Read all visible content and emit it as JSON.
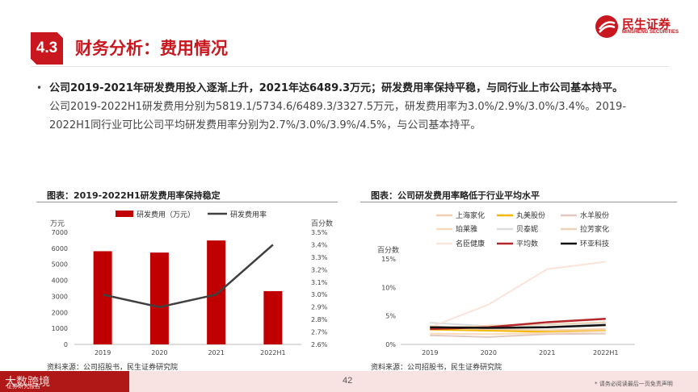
{
  "header": {
    "section_no": "4.3",
    "title": "财务分析：费用情况",
    "logo_cn": "民生证券",
    "logo_en": "MINSHENG SECURITIES"
  },
  "bullet": {
    "headline": "公司2019-2021年研发费用投入逐渐上升，2021年达6489.3万元；研发费用率保持平稳，与同行业上市公司基本持平。",
    "body_line1": "公司2019-2022H1研发费用分别为5819.1/5734.6/6489.3/3327.5万元，研发费用率为3.0%/2.9%/3.0%/3.4%。2019-",
    "body_line2": "2022H1同行业可比公司平均研发费用率分别为2.7%/3.0%/3.9%/4.5%，与公司基本持平。"
  },
  "chart_left": {
    "panel_title": "图表：2019-2022H1研发费用率保持稳定",
    "left_unit": "万元",
    "right_unit": "百分数",
    "source": "资料来源：公司招股书，民生证券研究院"
  },
  "chart_right": {
    "panel_title": "图表：公司研发费用率略低于行业平均水平",
    "y_unit": "百分数",
    "source": "资料来源：公司招股书，民生证券研究院"
  },
  "chart_data": [
    {
      "type": "bar",
      "categories": [
        "2019",
        "2020",
        "2021",
        "2022H1"
      ],
      "series": [
        {
          "name": "研发费用（万元）",
          "type": "bar",
          "axis": "left",
          "values": [
            5819.1,
            5734.6,
            6489.3,
            3327.5
          ],
          "color": "#c00000"
        },
        {
          "name": "研发费用率",
          "type": "line",
          "axis": "right",
          "values": [
            3.0,
            2.9,
            3.0,
            3.4
          ],
          "color": "#404040"
        }
      ],
      "ylim_left": [
        0,
        7000
      ],
      "yticks_left": [
        "0",
        "1000",
        "2000",
        "3000",
        "4000",
        "5000",
        "6000",
        "7000"
      ],
      "ylim_right": [
        2.6,
        3.5
      ],
      "yticks_right": [
        "2.6%",
        "2.7%",
        "2.8%",
        "2.9%",
        "3.0%",
        "3.1%",
        "3.2%",
        "3.3%",
        "3.4%",
        "3.5%"
      ],
      "legend": "top",
      "grid": false
    },
    {
      "type": "line",
      "categories": [
        "2019",
        "2020",
        "2021",
        "2022H1"
      ],
      "series": [
        {
          "name": "上海家化",
          "values": [
            3.2,
            2.6,
            2.5,
            2.7
          ],
          "color": "#f2cfb1"
        },
        {
          "name": "丸美股份",
          "values": [
            2.6,
            2.4,
            2.2,
            2.4
          ],
          "color": "#f5b800"
        },
        {
          "name": "水羊股份",
          "values": [
            1.6,
            1.3,
            1.8,
            1.9
          ],
          "color": "#e0c9c2"
        },
        {
          "name": "珀莱雅",
          "values": [
            1.9,
            1.8,
            2.0,
            2.3
          ],
          "color": "#f7dbbb"
        },
        {
          "name": "贝泰妮",
          "values": [
            3.8,
            3.2,
            3.1,
            3.7
          ],
          "color": "#dcdcdc"
        },
        {
          "name": "拉芳家化",
          "values": [
            2.8,
            3.3,
            3.5,
            3.9
          ],
          "color": "#e9d6b8"
        },
        {
          "name": "名臣健康",
          "values": [
            3.0,
            7.0,
            13.2,
            14.5
          ],
          "color": "#fbe4da"
        },
        {
          "name": "平均数",
          "values": [
            2.7,
            3.0,
            3.9,
            4.5
          ],
          "color": "#b3262a"
        },
        {
          "name": "环亚科技",
          "values": [
            3.0,
            2.9,
            3.0,
            3.4
          ],
          "color": "#111111"
        }
      ],
      "ylim": [
        0,
        15
      ],
      "yticks": [
        "0%",
        "5%",
        "10%",
        "15%"
      ],
      "legend": "top",
      "grid": false
    }
  ],
  "footer": {
    "watermark": "大数跨境",
    "watermark_small": "证券研究报告",
    "page": "42",
    "disclaimer": "* 请务必阅读最后一页免责声明"
  }
}
